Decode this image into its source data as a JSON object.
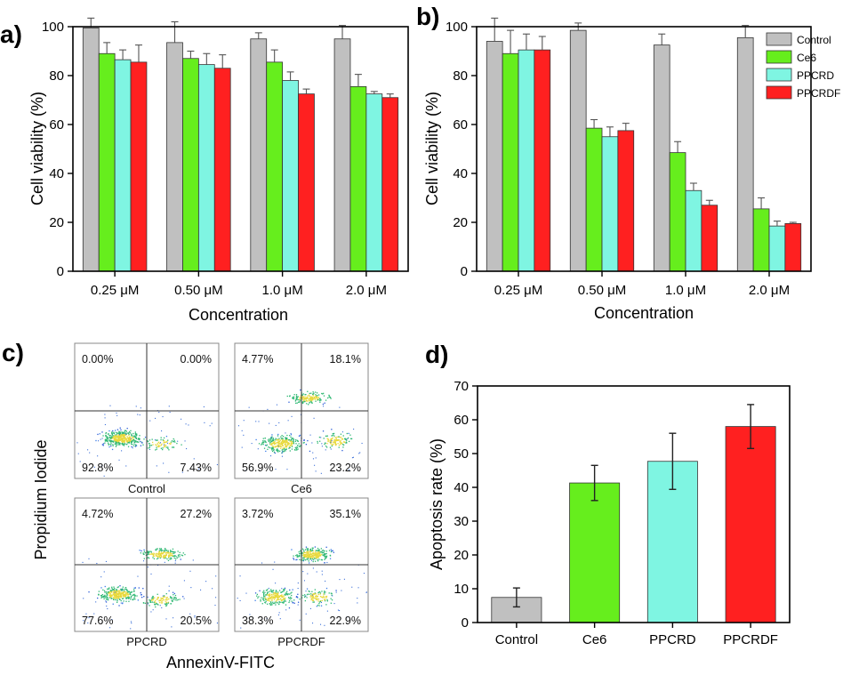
{
  "colors": {
    "Control": "#c0c0c0",
    "Ce6": "#66ee1d",
    "PPCRD": "#7ff5e2",
    "PPCRDF": "#ff2020"
  },
  "chart_data": [
    {
      "panel": "a)",
      "type": "bar",
      "categories": [
        "0.25 μM",
        "0.50 μM",
        "1.0 μM",
        "2.0 μM"
      ],
      "series": [
        {
          "name": "Control",
          "values": [
            99.5,
            93.5,
            95,
            95
          ],
          "errors": [
            4,
            8.5,
            2.5,
            5.5
          ]
        },
        {
          "name": "Ce6",
          "values": [
            89,
            87,
            85.5,
            75.5
          ],
          "errors": [
            4.5,
            3,
            5,
            5
          ]
        },
        {
          "name": "PPCRD",
          "values": [
            86.5,
            84.5,
            78,
            72.5
          ],
          "errors": [
            4,
            4.5,
            3.5,
            1
          ]
        },
        {
          "name": "PPCRDF",
          "values": [
            85.5,
            83,
            72.5,
            71
          ],
          "errors": [
            7,
            5.5,
            2,
            1.5
          ]
        }
      ],
      "xlabel": "Concentration",
      "ylabel": "Cell viability (%)",
      "ylim": [
        0,
        100
      ],
      "yticks": [
        0,
        20,
        40,
        60,
        80,
        100
      ]
    },
    {
      "panel": "b)",
      "type": "bar",
      "categories": [
        "0.25 μM",
        "0.50 μM",
        "1.0 μM",
        "2.0 μM"
      ],
      "series": [
        {
          "name": "Control",
          "values": [
            94,
            98.5,
            92.5,
            95.5
          ],
          "errors": [
            9.5,
            3,
            4.5,
            5
          ]
        },
        {
          "name": "Ce6",
          "values": [
            89,
            58.5,
            48.5,
            25.5
          ],
          "errors": [
            9.5,
            3.5,
            4.5,
            4.5
          ]
        },
        {
          "name": "PPCRD",
          "values": [
            90.5,
            55,
            33,
            18.5
          ],
          "errors": [
            6.5,
            4,
            3,
            2
          ]
        },
        {
          "name": "PPCRDF",
          "values": [
            90.5,
            57.5,
            27,
            19.5
          ],
          "errors": [
            5.5,
            3,
            2,
            0.5
          ]
        }
      ],
      "xlabel": "Concentration",
      "ylabel": "Cell viability (%)",
      "ylim": [
        0,
        100
      ],
      "yticks": [
        0,
        20,
        40,
        60,
        80,
        100
      ],
      "legend": [
        "Control",
        "Ce6",
        "PPCRD",
        "PPCRDF"
      ],
      "legend_placement": "top-right"
    },
    {
      "panel": "d)",
      "type": "bar",
      "categories": [
        "Control",
        "Ce6",
        "PPCRD",
        "PPCRDF"
      ],
      "values": [
        7.43,
        41.3,
        47.7,
        58
      ],
      "errors": [
        2.8,
        5.2,
        8.3,
        6.5
      ],
      "xlabel": "",
      "ylabel": "Apoptosis rate (%)",
      "ylim": [
        0,
        70
      ],
      "yticks": [
        0,
        10,
        20,
        30,
        40,
        50,
        60,
        70
      ]
    }
  ],
  "flow_panel": {
    "panel": "c)",
    "xlabel": "AnnexinV-FITC",
    "ylabel": "Propidium Iodide",
    "plots": [
      {
        "name": "Control",
        "q_upper_left": "0.00%",
        "q_upper_right": "0.00%",
        "q_lower_left": "92.8%",
        "q_lower_right": "7.43%"
      },
      {
        "name": "Ce6",
        "q_upper_left": "4.77%",
        "q_upper_right": "18.1%",
        "q_lower_left": "56.9%",
        "q_lower_right": "23.2%"
      },
      {
        "name": "PPCRD",
        "q_upper_left": "4.72%",
        "q_upper_right": "27.2%",
        "q_lower_left": "77.6%",
        "q_lower_right": "20.5%"
      },
      {
        "name": "PPCRDF",
        "q_upper_left": "3.72%",
        "q_upper_right": "35.1%",
        "q_lower_left": "38.3%",
        "q_lower_right": "22.9%"
      }
    ]
  }
}
